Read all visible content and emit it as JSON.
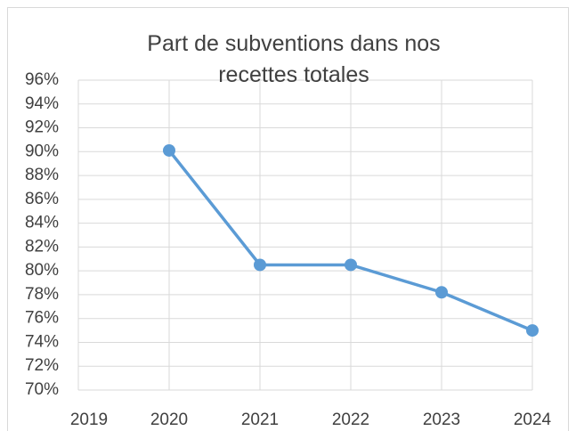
{
  "chart_data": {
    "type": "line",
    "title": "Part de subventions dans nos recettes totales",
    "categories": [
      "2019",
      "2020",
      "2021",
      "2022",
      "2023",
      "2024"
    ],
    "series": [
      {
        "name": "Part de subventions",
        "color": "#5b9bd5",
        "values": [
          null,
          90.1,
          80.5,
          80.5,
          78.2,
          75.0
        ]
      }
    ],
    "ylim": [
      70,
      96
    ],
    "yticks": [
      {
        "value": 70,
        "label": "70%"
      },
      {
        "value": 72,
        "label": "72%"
      },
      {
        "value": 74,
        "label": "74%"
      },
      {
        "value": 76,
        "label": "76%"
      },
      {
        "value": 78,
        "label": "78%"
      },
      {
        "value": 80,
        "label": "80%"
      },
      {
        "value": 82,
        "label": "82%"
      },
      {
        "value": 84,
        "label": "84%"
      },
      {
        "value": 86,
        "label": "86%"
      },
      {
        "value": 88,
        "label": "88%"
      },
      {
        "value": 90,
        "label": "90%"
      },
      {
        "value": 92,
        "label": "92%"
      },
      {
        "value": 94,
        "label": "94%"
      },
      {
        "value": 96,
        "label": "96%"
      }
    ],
    "grid": true
  }
}
